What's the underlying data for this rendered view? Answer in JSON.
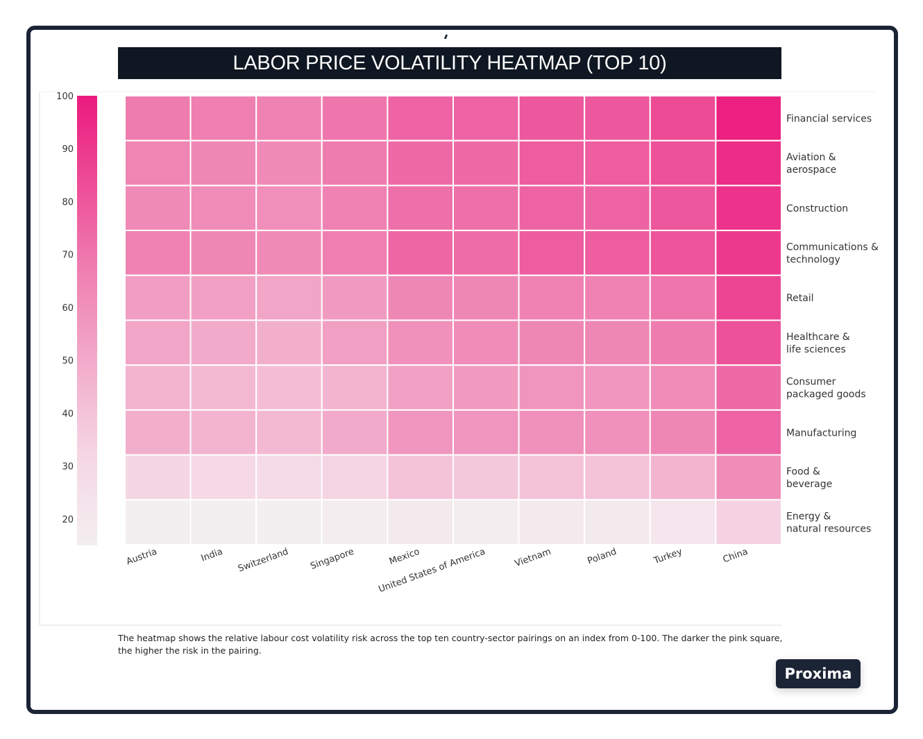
{
  "chart_data": {
    "type": "heatmap",
    "title": "LABOR PRICE VOLATILITY HEATMAP (TOP 10)",
    "x_categories": [
      "Austria",
      "India",
      "Switzerland",
      "Singapore",
      "Mexico",
      "United States of America",
      "Vietnam",
      "Poland",
      "Turkey",
      "China"
    ],
    "y_categories": [
      "Financial services",
      "Aviation &\naerospace",
      "Construction",
      "Communications &\ntechnology",
      "Retail",
      "Healthcare &\nlife sciences",
      "Consumer\npackaged goods",
      "Manufacturing",
      "Food &\nbeverage",
      "Energy &\nnatural resources"
    ],
    "values": [
      [
        68,
        67,
        66,
        70,
        76,
        76,
        80,
        80,
        84,
        98
      ],
      [
        65,
        64,
        63,
        68,
        74,
        74,
        78,
        78,
        82,
        94
      ],
      [
        63,
        62,
        61,
        66,
        72,
        72,
        76,
        76,
        80,
        92
      ],
      [
        66,
        64,
        63,
        67,
        75,
        73,
        78,
        78,
        81,
        90
      ],
      [
        55,
        54,
        52,
        56,
        64,
        64,
        66,
        66,
        70,
        86
      ],
      [
        52,
        50,
        48,
        54,
        60,
        62,
        64,
        64,
        68,
        82
      ],
      [
        46,
        44,
        42,
        46,
        54,
        56,
        58,
        58,
        62,
        74
      ],
      [
        48,
        46,
        44,
        50,
        58,
        58,
        60,
        60,
        64,
        76
      ],
      [
        32,
        30,
        29,
        33,
        40,
        38,
        40,
        40,
        46,
        62
      ],
      [
        15,
        14,
        14,
        16,
        18,
        16,
        18,
        18,
        21,
        34
      ]
    ],
    "colorbar": {
      "min": 15,
      "max": 100,
      "ticks": [
        100,
        90,
        80,
        70,
        60,
        50,
        40,
        30,
        20
      ]
    },
    "colors": {
      "low": "#f3eef0",
      "high": "#eb1a7e"
    }
  },
  "caption": "The heatmap shows the relative labour cost volatility risk across the top ten country-sector pairings on an index from 0-100. The darker the pink square, the higher the risk in the pairing.",
  "badge_label": "Proxima"
}
